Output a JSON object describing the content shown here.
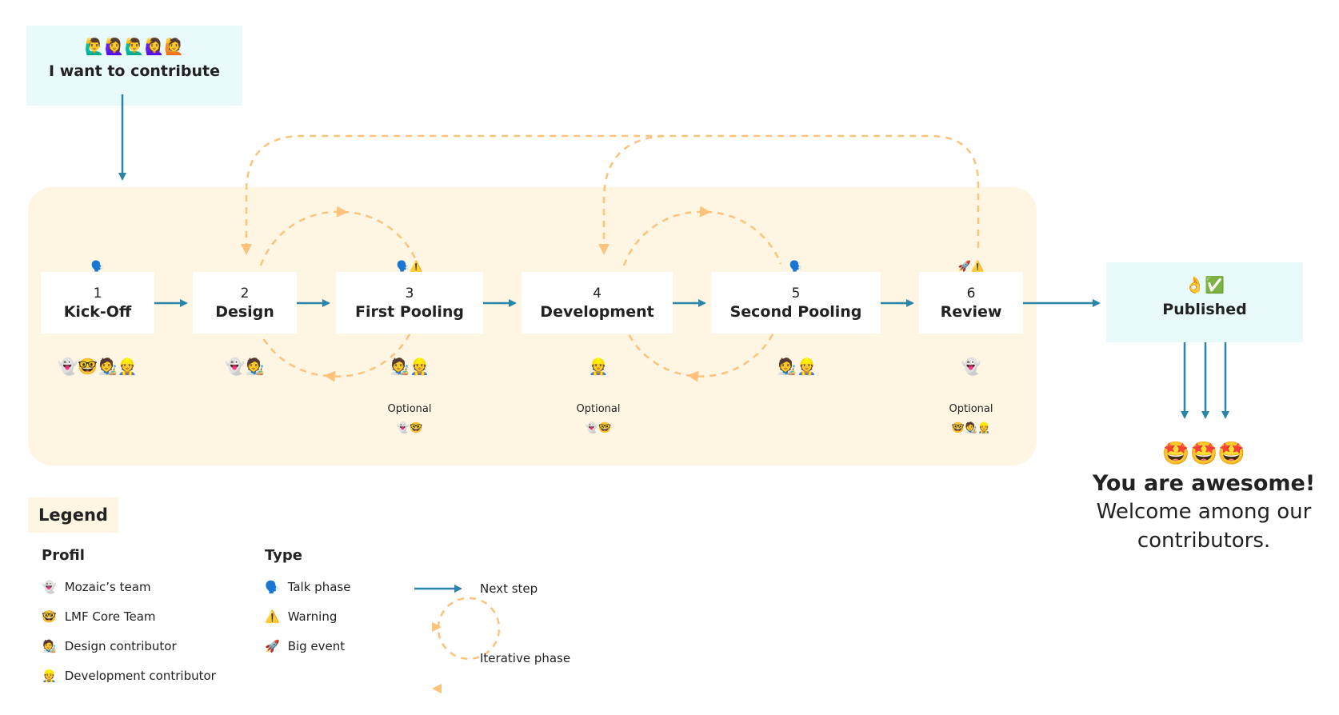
{
  "start": {
    "emoji": "🙋‍♂️🙋‍♀️🙋‍♂️🙋‍♀️🙋",
    "label": "I want to contribute"
  },
  "stages": [
    {
      "num": "1",
      "name": "Kick-Off",
      "type": "🗣️",
      "profiles": "👻🤓🧑‍🎨👷"
    },
    {
      "num": "2",
      "name": "Design",
      "type": "",
      "profiles": "👻🧑‍🎨"
    },
    {
      "num": "3",
      "name": "First Pooling",
      "type": "🗣️⚠️",
      "profiles": "🧑‍🎨👷",
      "optional": "Optional",
      "optional_profiles": "👻🤓"
    },
    {
      "num": "4",
      "name": "Development",
      "type": "",
      "profiles": "👷",
      "optional": "Optional",
      "optional_profiles": "👻🤓"
    },
    {
      "num": "5",
      "name": "Second Pooling",
      "type": "🗣️",
      "profiles": "🧑‍🎨👷"
    },
    {
      "num": "6",
      "name": "Review",
      "type": "🚀⚠️",
      "profiles": "👻",
      "optional": "Optional",
      "optional_profiles": "🤓🧑‍🎨👷"
    }
  ],
  "published": {
    "emoji": "👌✅",
    "label": "Published"
  },
  "finale": {
    "emoji": "🤩🤩🤩",
    "title": "You are awesome!",
    "subtitle": "Welcome among our contributors."
  },
  "legend": {
    "title": "Legend",
    "profil_title": "Profil",
    "profil": [
      {
        "icon": "👻",
        "label": "Mozaic’s team"
      },
      {
        "icon": "🤓",
        "label": "LMF Core Team"
      },
      {
        "icon": "🧑‍🎨",
        "label": "Design contributor"
      },
      {
        "icon": "👷",
        "label": "Development contributor"
      }
    ],
    "type_title": "Type",
    "types": [
      {
        "icon": "🗣️",
        "label": "Talk phase"
      },
      {
        "icon": "⚠️",
        "label": "Warning"
      },
      {
        "icon": "🚀",
        "label": "Big event"
      }
    ],
    "next_step": "Next step",
    "iterative": "Iterative phase"
  },
  "colors": {
    "arrow": "#2a85a8",
    "loop": "#fdc27c",
    "panel": "#fef6e2",
    "cyan": "#e9fafb"
  }
}
